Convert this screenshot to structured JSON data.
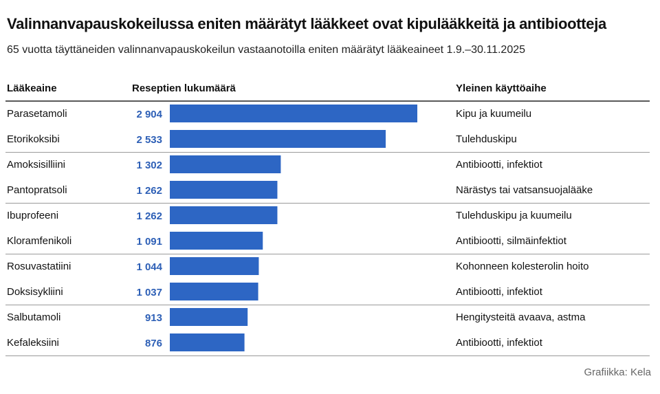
{
  "title": "Valinnanvapauskokeilussa eniten määrätyt lääkkeet ovat kipulääkkeitä ja antibiootteja",
  "subtitle": "65 vuotta täyttäneiden valinnanvapauskokeilun vastaanotoilla eniten määrätyt lääkeaineet 1.9.–30.11.2025",
  "source": "Grafiikka: Kela",
  "colors": {
    "bar": "#2d66c4",
    "value_label": "#2d5fb6",
    "divider": "#999999",
    "header_rule": "#222222"
  },
  "chart_data": {
    "type": "bar",
    "orientation": "horizontal",
    "columns": {
      "name": "Lääkeaine",
      "value": "Reseptien lukumäärä",
      "use": "Yleinen käyttöaihe"
    },
    "categories": [
      "Parasetamoli",
      "Etorikoksibi",
      "Amoksisilliini",
      "Pantopratsoli",
      "Ibuprofeeni",
      "Kloramfenikoli",
      "Rosuvastatiini",
      "Doksisykliini",
      "Salbutamoli",
      "Kefaleksiini"
    ],
    "values": [
      2904,
      2533,
      1302,
      1262,
      1262,
      1091,
      1044,
      1037,
      913,
      876
    ],
    "value_labels": [
      "2 904",
      "2 533",
      "1 302",
      "1 262",
      "1 262",
      "1 091",
      "1 044",
      "1 037",
      "913",
      "876"
    ],
    "uses": [
      "Kipu ja kuumeilu",
      "Tulehduskipu",
      "Antibiootti, infektiot",
      "Närästys tai vatsansuojalääke",
      "Tulehduskipu ja kuumeilu",
      "Antibiootti, silmäinfektiot",
      "Kohonneen kolesterolin hoito",
      "Antibiootti, infektiot",
      "Hengitysteitä avaava, astma",
      "Antibiootti, infektiot"
    ],
    "xlim": [
      0,
      2904
    ],
    "grid": false,
    "legend": "none"
  }
}
